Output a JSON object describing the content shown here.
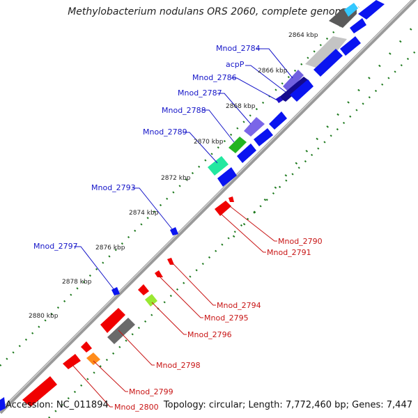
{
  "title": "Methylobacterium nodulans ORS 2060, complete genome",
  "accession_text": "Accession: NC_011894",
  "summary_text": "Topology: circular; Length: 7,772,460 bp; Genes: 7,447",
  "colors": {
    "cds_blue": "#0a14f0",
    "cds_red": "#f00000",
    "label_blue": "#1414c8",
    "label_red": "#c81414",
    "backbone": "#888888",
    "tick_green": "#1e7a1e"
  },
  "scale_labels": [
    {
      "text": "2864 kbp",
      "kbp": 2864
    },
    {
      "text": "2866 kbp",
      "kbp": 2866
    },
    {
      "text": "2868 kbp",
      "kbp": 2868
    },
    {
      "text": "2870 kbp",
      "kbp": 2870
    },
    {
      "text": "2872 kbp",
      "kbp": 2872
    },
    {
      "text": "2874 kbp",
      "kbp": 2874
    },
    {
      "text": "2876 kbp",
      "kbp": 2876
    },
    {
      "text": "2878 kbp",
      "kbp": 2878
    },
    {
      "text": "2880 kbp",
      "kbp": 2880
    }
  ],
  "gene_labels_top": [
    {
      "id": "Mnod_2784",
      "text": "Mnod_2784"
    },
    {
      "id": "acpP",
      "text": "acpP"
    },
    {
      "id": "Mnod_2786",
      "text": "Mnod_2786"
    },
    {
      "id": "Mnod_2787",
      "text": "Mnod_2787"
    },
    {
      "id": "Mnod_2788",
      "text": "Mnod_2788"
    },
    {
      "id": "Mnod_2789",
      "text": "Mnod_2789"
    },
    {
      "id": "Mnod_2793",
      "text": "Mnod_2793"
    },
    {
      "id": "Mnod_2797",
      "text": "Mnod_2797"
    }
  ],
  "gene_labels_bottom": [
    {
      "id": "Mnod_2790",
      "text": "Mnod_2790"
    },
    {
      "id": "Mnod_2791",
      "text": "Mnod_2791"
    },
    {
      "id": "Mnod_2794",
      "text": "Mnod_2794"
    },
    {
      "id": "Mnod_2795",
      "text": "Mnod_2795"
    },
    {
      "id": "Mnod_2796",
      "text": "Mnod_2796"
    },
    {
      "id": "Mnod_2798",
      "text": "Mnod_2798"
    },
    {
      "id": "Mnod_2799",
      "text": "Mnod_2799"
    },
    {
      "id": "Mnod_2800",
      "text": "Mnod_2800"
    }
  ]
}
